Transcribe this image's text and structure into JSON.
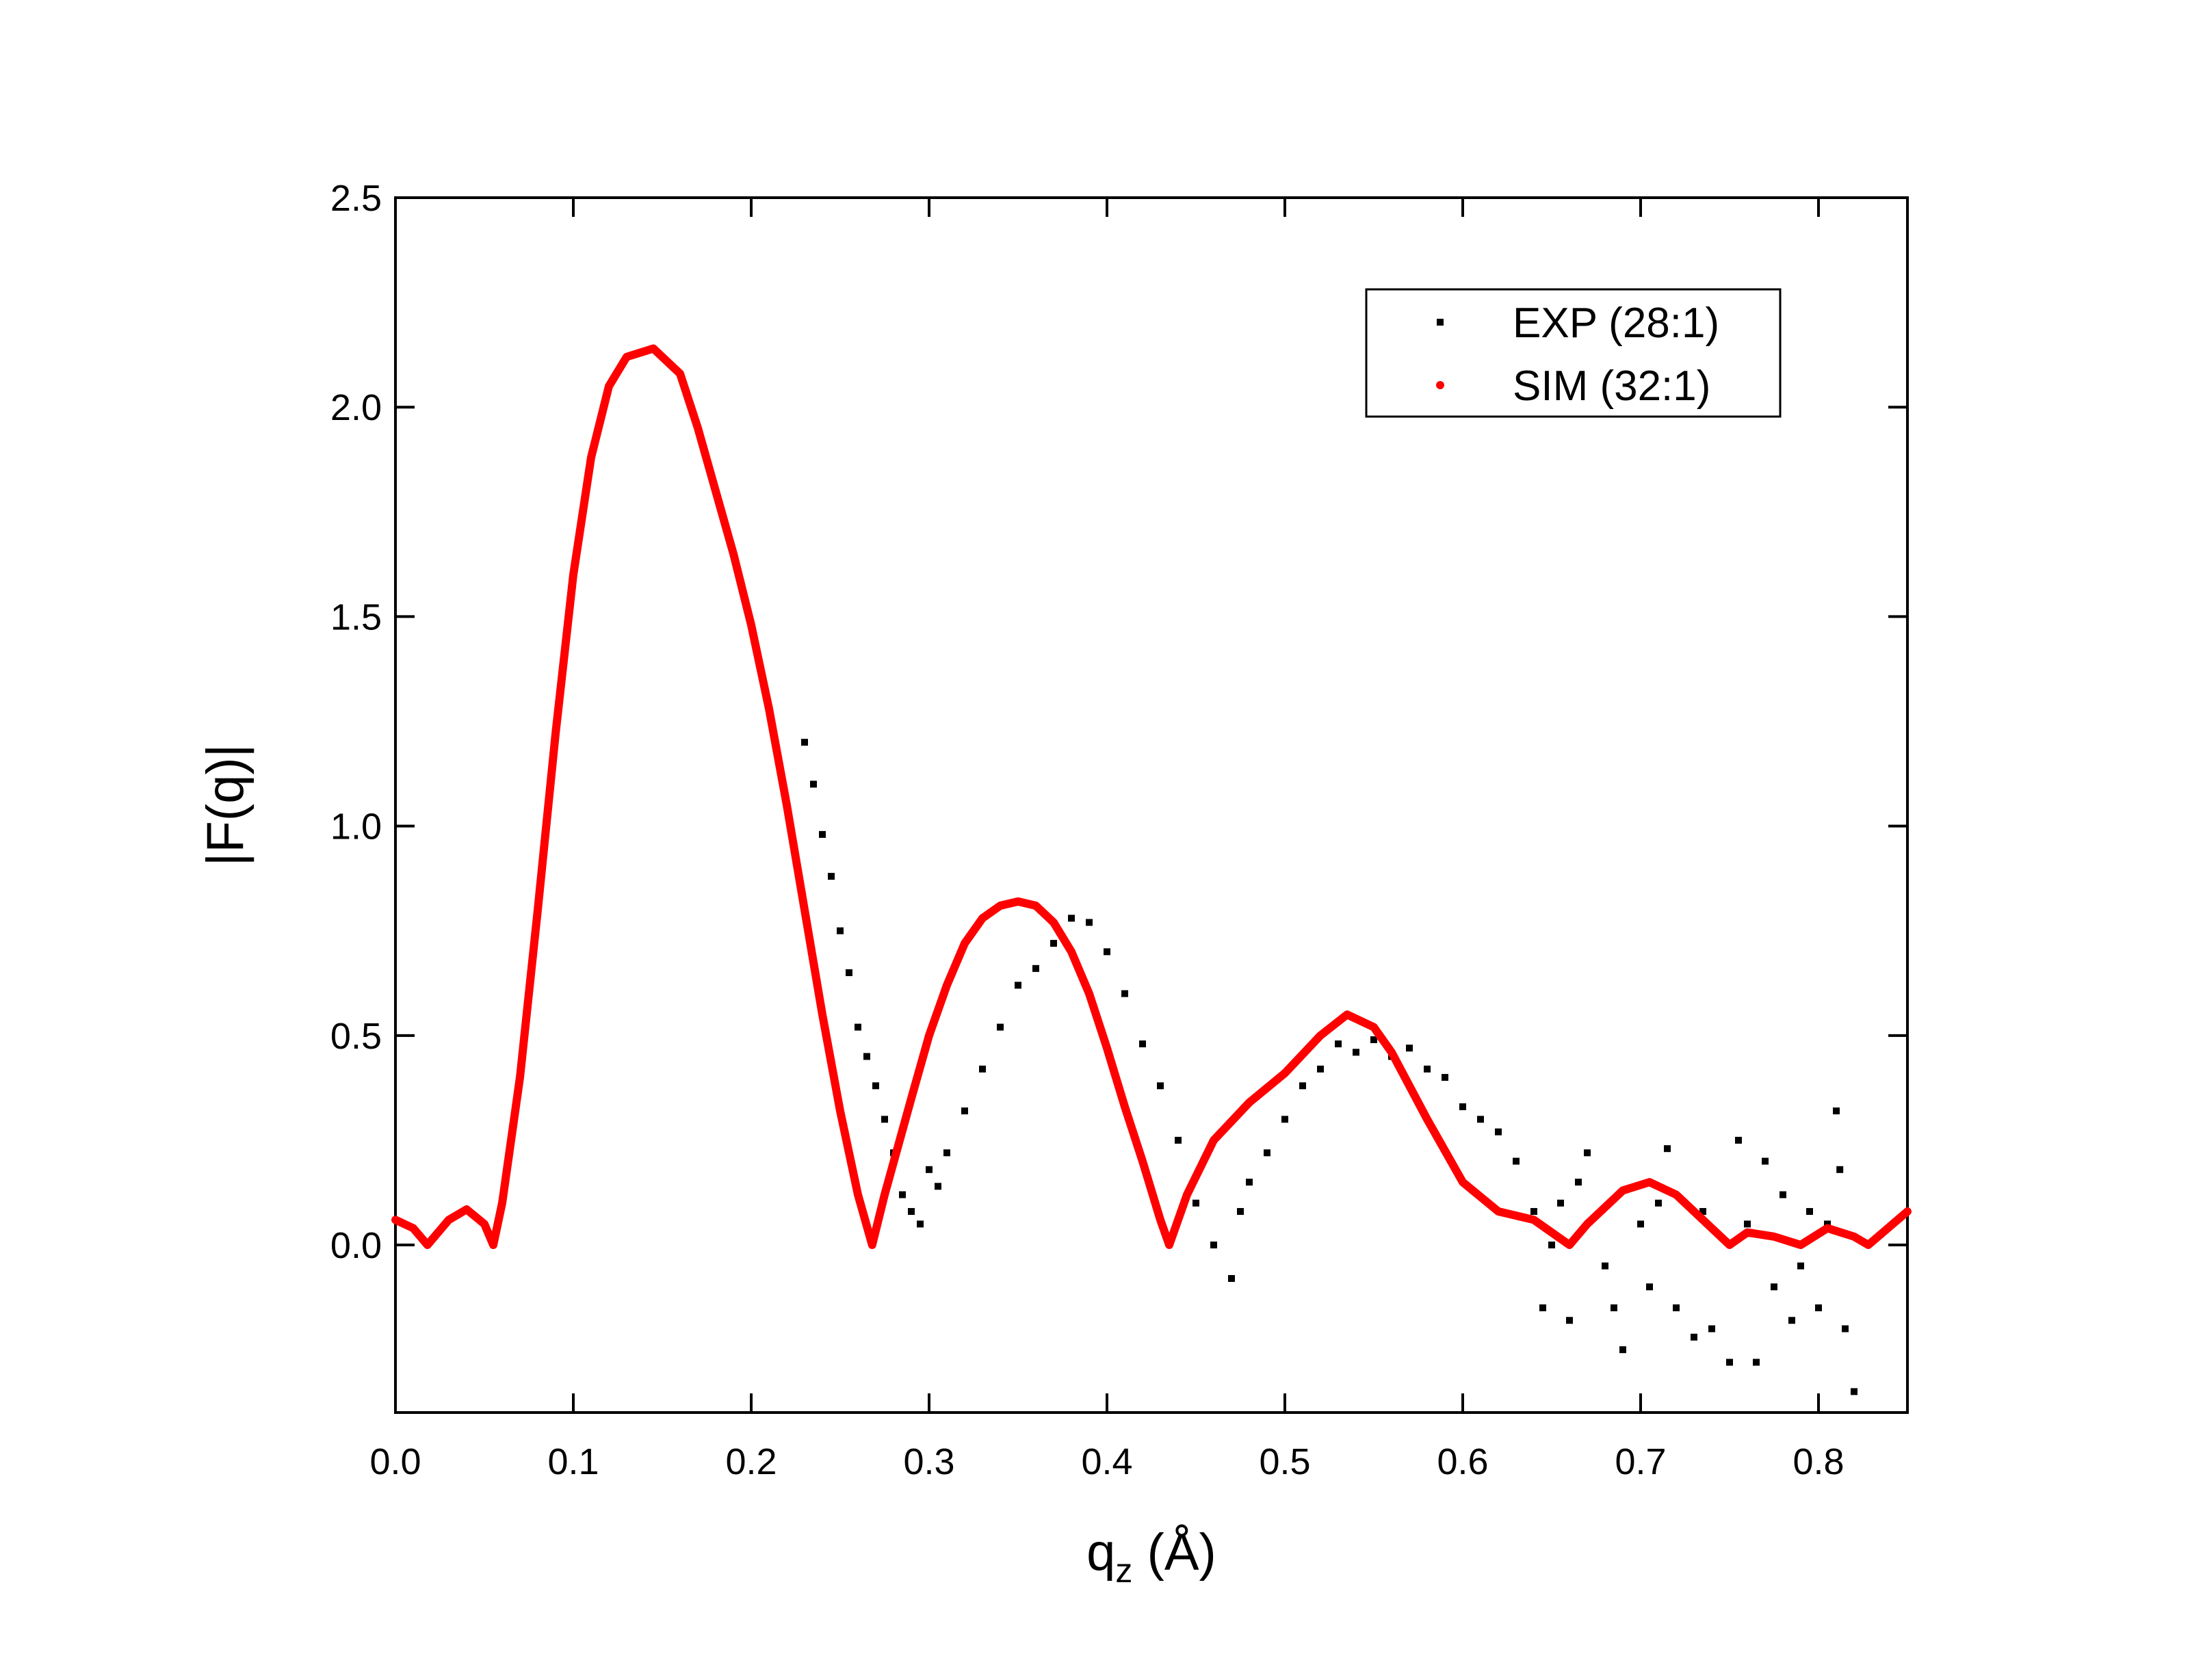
{
  "chart_data": {
    "type": "scatter",
    "xlabel": [
      "q",
      "z",
      " (Å)"
    ],
    "ylabel": "|F(q)|",
    "xlim": [
      0,
      0.85
    ],
    "ylim": [
      -0.4,
      2.5
    ],
    "xticks": [
      {
        "value": 0,
        "label": "0.0"
      },
      0.1,
      0.2,
      0.3,
      0.4,
      0.5,
      0.6,
      0.7,
      0.8
    ],
    "yticks": [
      {
        "value": 0,
        "label": "0.0"
      },
      0.5,
      {
        "value": 1,
        "label": "1.0"
      },
      1.5,
      {
        "value": 2,
        "label": "2.0"
      },
      2.5
    ],
    "legend": "upper right",
    "series": [
      {
        "name": "EXP (28:1)",
        "color": "#000000",
        "marker": "square",
        "x": [
          0.23,
          0.235,
          0.24,
          0.245,
          0.25,
          0.255,
          0.26,
          0.265,
          0.27,
          0.275,
          0.28,
          0.285,
          0.29,
          0.295,
          0.3,
          0.305,
          0.31,
          0.32,
          0.33,
          0.34,
          0.35,
          0.36,
          0.37,
          0.38,
          0.39,
          0.4,
          0.41,
          0.42,
          0.43,
          0.44,
          0.45,
          0.46,
          0.47,
          0.475,
          0.48,
          0.49,
          0.5,
          0.51,
          0.52,
          0.53,
          0.54,
          0.55,
          0.56,
          0.57,
          0.58,
          0.59,
          0.6,
          0.61,
          0.62,
          0.63,
          0.64,
          0.645,
          0.65,
          0.655,
          0.66,
          0.665,
          0.67,
          0.68,
          0.685,
          0.69,
          0.7,
          0.705,
          0.71,
          0.715,
          0.72,
          0.73,
          0.735,
          0.74,
          0.75,
          0.755,
          0.76,
          0.765,
          0.77,
          0.775,
          0.78,
          0.785,
          0.79,
          0.795,
          0.8,
          0.805,
          0.81,
          0.812,
          0.815,
          0.82
        ],
        "values": [
          1.2,
          1.1,
          0.98,
          0.88,
          0.75,
          0.65,
          0.52,
          0.45,
          0.38,
          0.3,
          0.22,
          0.12,
          0.08,
          0.05,
          0.18,
          0.14,
          0.22,
          0.32,
          0.42,
          0.52,
          0.62,
          0.66,
          0.72,
          0.78,
          0.77,
          0.7,
          0.6,
          0.48,
          0.38,
          0.25,
          0.1,
          0.0,
          -0.08,
          0.08,
          0.15,
          0.22,
          0.3,
          0.38,
          0.42,
          0.48,
          0.46,
          0.49,
          0.45,
          0.47,
          0.42,
          0.4,
          0.33,
          0.3,
          0.27,
          0.2,
          0.08,
          -0.15,
          0.0,
          0.1,
          -0.18,
          0.15,
          0.22,
          -0.05,
          -0.15,
          -0.25,
          0.05,
          -0.1,
          0.1,
          0.23,
          -0.15,
          -0.22,
          0.08,
          -0.2,
          -0.28,
          0.25,
          0.05,
          -0.28,
          0.2,
          -0.1,
          0.12,
          -0.18,
          -0.05,
          0.08,
          -0.15,
          0.05,
          0.32,
          0.18,
          -0.2,
          -0.35
        ]
      },
      {
        "name": "SIM (32:1)",
        "color": "#ff0000",
        "marker": "circle",
        "x": [
          0,
          0.01,
          0.018,
          0.03,
          0.04,
          0.05,
          0.055,
          0.06,
          0.07,
          0.08,
          0.09,
          0.1,
          0.11,
          0.12,
          0.13,
          0.145,
          0.16,
          0.17,
          0.18,
          0.19,
          0.2,
          0.21,
          0.22,
          0.23,
          0.24,
          0.25,
          0.26,
          0.268,
          0.275,
          0.29,
          0.3,
          0.31,
          0.32,
          0.33,
          0.34,
          0.35,
          0.36,
          0.37,
          0.38,
          0.39,
          0.4,
          0.41,
          0.42,
          0.43,
          0.435,
          0.445,
          0.46,
          0.48,
          0.5,
          0.52,
          0.535,
          0.55,
          0.56,
          0.58,
          0.6,
          0.62,
          0.64,
          0.65,
          0.66,
          0.67,
          0.69,
          0.705,
          0.72,
          0.74,
          0.75,
          0.76,
          0.775,
          0.79,
          0.805,
          0.82,
          0.828,
          0.85
        ],
        "values": [
          0.06,
          0.04,
          0.0,
          0.06,
          0.085,
          0.05,
          0.0,
          0.1,
          0.4,
          0.8,
          1.22,
          1.6,
          1.88,
          2.05,
          2.12,
          2.14,
          2.08,
          1.95,
          1.8,
          1.65,
          1.48,
          1.28,
          1.05,
          0.8,
          0.55,
          0.32,
          0.12,
          0.0,
          0.12,
          0.35,
          0.5,
          0.62,
          0.72,
          0.78,
          0.81,
          0.82,
          0.81,
          0.77,
          0.7,
          0.6,
          0.47,
          0.33,
          0.2,
          0.06,
          0.0,
          0.12,
          0.25,
          0.34,
          0.41,
          0.5,
          0.55,
          0.52,
          0.46,
          0.3,
          0.15,
          0.08,
          0.06,
          0.03,
          0.0,
          0.05,
          0.13,
          0.15,
          0.12,
          0.04,
          0.0,
          0.03,
          0.02,
          0.0,
          0.04,
          0.02,
          0.0,
          0.08
        ]
      }
    ]
  }
}
